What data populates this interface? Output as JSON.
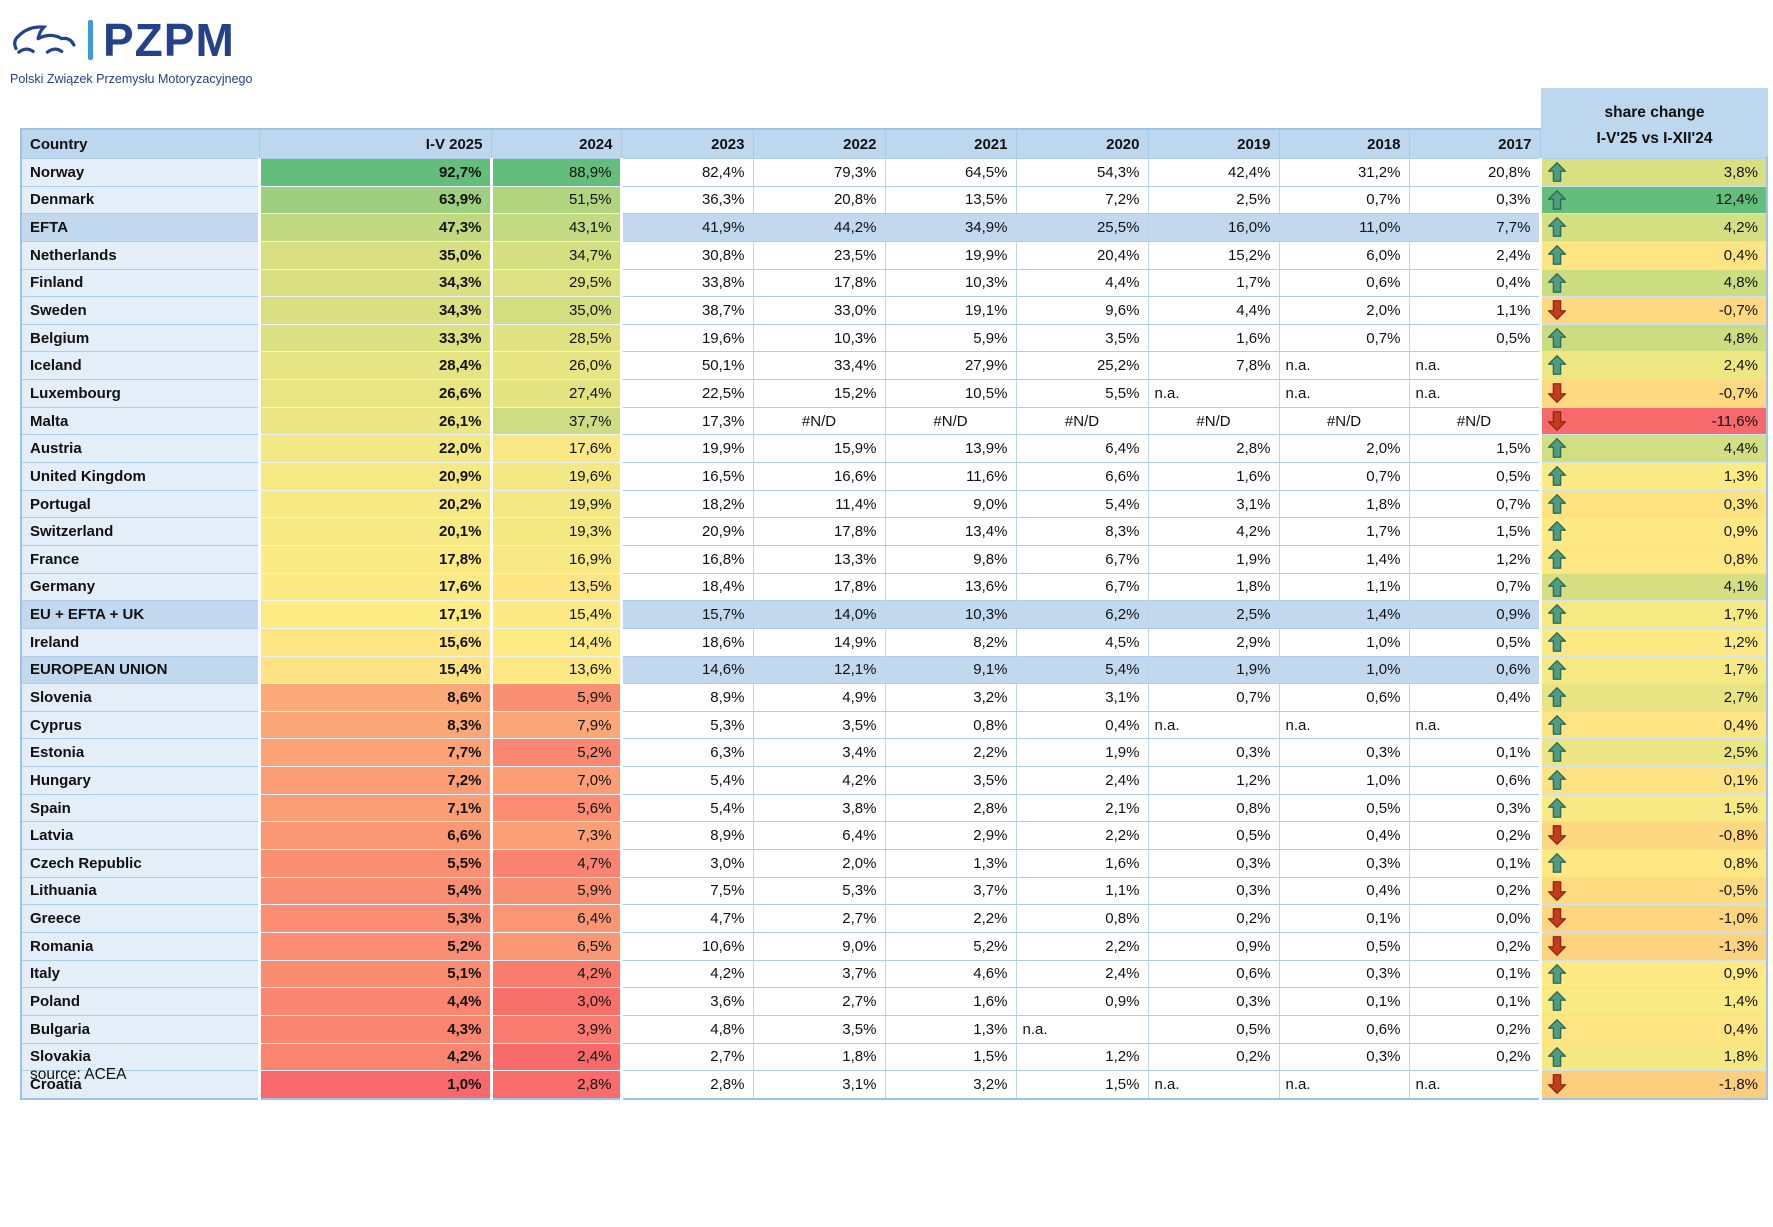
{
  "logo": {
    "brand": "PZPM",
    "subtitle": "Polski Związek Przemysłu Motoryzacyjnego"
  },
  "source": "source: ACEA",
  "colors": {
    "scale_min_red": "#F8696B",
    "scale_mid_yellow": "#FFEB84",
    "scale_max_green": "#63BE7B",
    "header_bg": "#BDD7EE",
    "aggregate_row_bg": "#C2D8EF",
    "country_cell_bg": "#E4EEF8",
    "arrow_up": "#4F9C83",
    "arrow_up_stroke": "#2F6B55",
    "arrow_down": "#C33C1B",
    "arrow_down_stroke": "#8E2B12",
    "logo_navy": "#24418A",
    "logo_bar_blue": "#3C9BD5"
  },
  "chart_data": {
    "type": "heatmap",
    "note": "BEV market share by country and year, cells colored red-yellow-green by value"
  },
  "table": {
    "columns": [
      "Country",
      "I-V 2025",
      "2024",
      "2023",
      "2022",
      "2021",
      "2020",
      "2019",
      "2018",
      "2017"
    ],
    "share_header_line1": "share change",
    "share_header_line2": "I-V'25 vs I-XII'24",
    "rows": [
      {
        "country": "Norway",
        "aggregate": false,
        "values": [
          "92,7%",
          "88,9%",
          "82,4%",
          "79,3%",
          "64,5%",
          "54,3%",
          "42,4%",
          "31,2%",
          "20,8%"
        ],
        "share": "3,8%",
        "arrow": "up"
      },
      {
        "country": "Denmark",
        "aggregate": false,
        "values": [
          "63,9%",
          "51,5%",
          "36,3%",
          "20,8%",
          "13,5%",
          "7,2%",
          "2,5%",
          "0,7%",
          "0,3%"
        ],
        "share": "12,4%",
        "arrow": "up"
      },
      {
        "country": "EFTA",
        "aggregate": true,
        "values": [
          "47,3%",
          "43,1%",
          "41,9%",
          "44,2%",
          "34,9%",
          "25,5%",
          "16,0%",
          "11,0%",
          "7,7%"
        ],
        "share": "4,2%",
        "arrow": "up"
      },
      {
        "country": "Netherlands",
        "aggregate": false,
        "values": [
          "35,0%",
          "34,7%",
          "30,8%",
          "23,5%",
          "19,9%",
          "20,4%",
          "15,2%",
          "6,0%",
          "2,4%"
        ],
        "share": "0,4%",
        "arrow": "up"
      },
      {
        "country": "Finland",
        "aggregate": false,
        "values": [
          "34,3%",
          "29,5%",
          "33,8%",
          "17,8%",
          "10,3%",
          "4,4%",
          "1,7%",
          "0,6%",
          "0,4%"
        ],
        "share": "4,8%",
        "arrow": "up"
      },
      {
        "country": "Sweden",
        "aggregate": false,
        "values": [
          "34,3%",
          "35,0%",
          "38,7%",
          "33,0%",
          "19,1%",
          "9,6%",
          "4,4%",
          "2,0%",
          "1,1%"
        ],
        "share": "-0,7%",
        "arrow": "down"
      },
      {
        "country": "Belgium",
        "aggregate": false,
        "values": [
          "33,3%",
          "28,5%",
          "19,6%",
          "10,3%",
          "5,9%",
          "3,5%",
          "1,6%",
          "0,7%",
          "0,5%"
        ],
        "share": "4,8%",
        "arrow": "up"
      },
      {
        "country": "Iceland",
        "aggregate": false,
        "values": [
          "28,4%",
          "26,0%",
          "50,1%",
          "33,4%",
          "27,9%",
          "25,2%",
          "7,8%",
          "n.a.",
          "n.a."
        ],
        "share": "2,4%",
        "arrow": "up"
      },
      {
        "country": "Luxembourg",
        "aggregate": false,
        "values": [
          "26,6%",
          "27,4%",
          "22,5%",
          "15,2%",
          "10,5%",
          "5,5%",
          "n.a.",
          "n.a.",
          "n.a."
        ],
        "share": "-0,7%",
        "arrow": "down"
      },
      {
        "country": "Malta",
        "aggregate": false,
        "values": [
          "26,1%",
          "37,7%",
          "17,3%",
          "#N/D",
          "#N/D",
          "#N/D",
          "#N/D",
          "#N/D",
          "#N/D"
        ],
        "share": "-11,6%",
        "arrow": "down"
      },
      {
        "country": "Austria",
        "aggregate": false,
        "values": [
          "22,0%",
          "17,6%",
          "19,9%",
          "15,9%",
          "13,9%",
          "6,4%",
          "2,8%",
          "2,0%",
          "1,5%"
        ],
        "share": "4,4%",
        "arrow": "up"
      },
      {
        "country": "United Kingdom",
        "aggregate": false,
        "values": [
          "20,9%",
          "19,6%",
          "16,5%",
          "16,6%",
          "11,6%",
          "6,6%",
          "1,6%",
          "0,7%",
          "0,5%"
        ],
        "share": "1,3%",
        "arrow": "up"
      },
      {
        "country": "Portugal",
        "aggregate": false,
        "values": [
          "20,2%",
          "19,9%",
          "18,2%",
          "11,4%",
          "9,0%",
          "5,4%",
          "3,1%",
          "1,8%",
          "0,7%"
        ],
        "share": "0,3%",
        "arrow": "up"
      },
      {
        "country": "Switzerland",
        "aggregate": false,
        "values": [
          "20,1%",
          "19,3%",
          "20,9%",
          "17,8%",
          "13,4%",
          "8,3%",
          "4,2%",
          "1,7%",
          "1,5%"
        ],
        "share": "0,9%",
        "arrow": "up"
      },
      {
        "country": "France",
        "aggregate": false,
        "values": [
          "17,8%",
          "16,9%",
          "16,8%",
          "13,3%",
          "9,8%",
          "6,7%",
          "1,9%",
          "1,4%",
          "1,2%"
        ],
        "share": "0,8%",
        "arrow": "up"
      },
      {
        "country": "Germany",
        "aggregate": false,
        "values": [
          "17,6%",
          "13,5%",
          "18,4%",
          "17,8%",
          "13,6%",
          "6,7%",
          "1,8%",
          "1,1%",
          "0,7%"
        ],
        "share": "4,1%",
        "arrow": "up"
      },
      {
        "country": "EU + EFTA + UK",
        "aggregate": true,
        "values": [
          "17,1%",
          "15,4%",
          "15,7%",
          "14,0%",
          "10,3%",
          "6,2%",
          "2,5%",
          "1,4%",
          "0,9%"
        ],
        "share": "1,7%",
        "arrow": "up"
      },
      {
        "country": "Ireland",
        "aggregate": false,
        "values": [
          "15,6%",
          "14,4%",
          "18,6%",
          "14,9%",
          "8,2%",
          "4,5%",
          "2,9%",
          "1,0%",
          "0,5%"
        ],
        "share": "1,2%",
        "arrow": "up"
      },
      {
        "country": "EUROPEAN UNION",
        "aggregate": true,
        "values": [
          "15,4%",
          "13,6%",
          "14,6%",
          "12,1%",
          "9,1%",
          "5,4%",
          "1,9%",
          "1,0%",
          "0,6%"
        ],
        "share": "1,7%",
        "arrow": "up"
      },
      {
        "country": "Slovenia",
        "aggregate": false,
        "values": [
          "8,6%",
          "5,9%",
          "8,9%",
          "4,9%",
          "3,2%",
          "3,1%",
          "0,7%",
          "0,6%",
          "0,4%"
        ],
        "share": "2,7%",
        "arrow": "up"
      },
      {
        "country": "Cyprus",
        "aggregate": false,
        "values": [
          "8,3%",
          "7,9%",
          "5,3%",
          "3,5%",
          "0,8%",
          "0,4%",
          "n.a.",
          "n.a.",
          "n.a."
        ],
        "share": "0,4%",
        "arrow": "up"
      },
      {
        "country": "Estonia",
        "aggregate": false,
        "values": [
          "7,7%",
          "5,2%",
          "6,3%",
          "3,4%",
          "2,2%",
          "1,9%",
          "0,3%",
          "0,3%",
          "0,1%"
        ],
        "share": "2,5%",
        "arrow": "up"
      },
      {
        "country": "Hungary",
        "aggregate": false,
        "values": [
          "7,2%",
          "7,0%",
          "5,4%",
          "4,2%",
          "3,5%",
          "2,4%",
          "1,2%",
          "1,0%",
          "0,6%"
        ],
        "share": "0,1%",
        "arrow": "up"
      },
      {
        "country": "Spain",
        "aggregate": false,
        "values": [
          "7,1%",
          "5,6%",
          "5,4%",
          "3,8%",
          "2,8%",
          "2,1%",
          "0,8%",
          "0,5%",
          "0,3%"
        ],
        "share": "1,5%",
        "arrow": "up"
      },
      {
        "country": "Latvia",
        "aggregate": false,
        "values": [
          "6,6%",
          "7,3%",
          "8,9%",
          "6,4%",
          "2,9%",
          "2,2%",
          "0,5%",
          "0,4%",
          "0,2%"
        ],
        "share": "-0,8%",
        "arrow": "down"
      },
      {
        "country": "Czech Republic",
        "aggregate": false,
        "values": [
          "5,5%",
          "4,7%",
          "3,0%",
          "2,0%",
          "1,3%",
          "1,6%",
          "0,3%",
          "0,3%",
          "0,1%"
        ],
        "share": "0,8%",
        "arrow": "up"
      },
      {
        "country": "Lithuania",
        "aggregate": false,
        "values": [
          "5,4%",
          "5,9%",
          "7,5%",
          "5,3%",
          "3,7%",
          "1,1%",
          "0,3%",
          "0,4%",
          "0,2%"
        ],
        "share": "-0,5%",
        "arrow": "down"
      },
      {
        "country": "Greece",
        "aggregate": false,
        "values": [
          "5,3%",
          "6,4%",
          "4,7%",
          "2,7%",
          "2,2%",
          "0,8%",
          "0,2%",
          "0,1%",
          "0,0%"
        ],
        "share": "-1,0%",
        "arrow": "down"
      },
      {
        "country": "Romania",
        "aggregate": false,
        "values": [
          "5,2%",
          "6,5%",
          "10,6%",
          "9,0%",
          "5,2%",
          "2,2%",
          "0,9%",
          "0,5%",
          "0,2%"
        ],
        "share": "-1,3%",
        "arrow": "down"
      },
      {
        "country": "Italy",
        "aggregate": false,
        "values": [
          "5,1%",
          "4,2%",
          "4,2%",
          "3,7%",
          "4,6%",
          "2,4%",
          "0,6%",
          "0,3%",
          "0,1%"
        ],
        "share": "0,9%",
        "arrow": "up"
      },
      {
        "country": "Poland",
        "aggregate": false,
        "values": [
          "4,4%",
          "3,0%",
          "3,6%",
          "2,7%",
          "1,6%",
          "0,9%",
          "0,3%",
          "0,1%",
          "0,1%"
        ],
        "share": "1,4%",
        "arrow": "up"
      },
      {
        "country": "Bulgaria",
        "aggregate": false,
        "values": [
          "4,3%",
          "3,9%",
          "4,8%",
          "3,5%",
          "1,3%",
          "n.a.",
          "0,5%",
          "0,6%",
          "0,2%"
        ],
        "share": "0,4%",
        "arrow": "up"
      },
      {
        "country": "Slovakia",
        "aggregate": false,
        "values": [
          "4,2%",
          "2,4%",
          "2,7%",
          "1,8%",
          "1,5%",
          "1,2%",
          "0,2%",
          "0,3%",
          "0,2%"
        ],
        "share": "1,8%",
        "arrow": "up"
      },
      {
        "country": "Croatia",
        "aggregate": false,
        "values": [
          "1,0%",
          "2,8%",
          "2,8%",
          "3,1%",
          "3,2%",
          "1,5%",
          "n.a.",
          "n.a.",
          "n.a."
        ],
        "share": "-1,8%",
        "arrow": "down"
      }
    ]
  }
}
